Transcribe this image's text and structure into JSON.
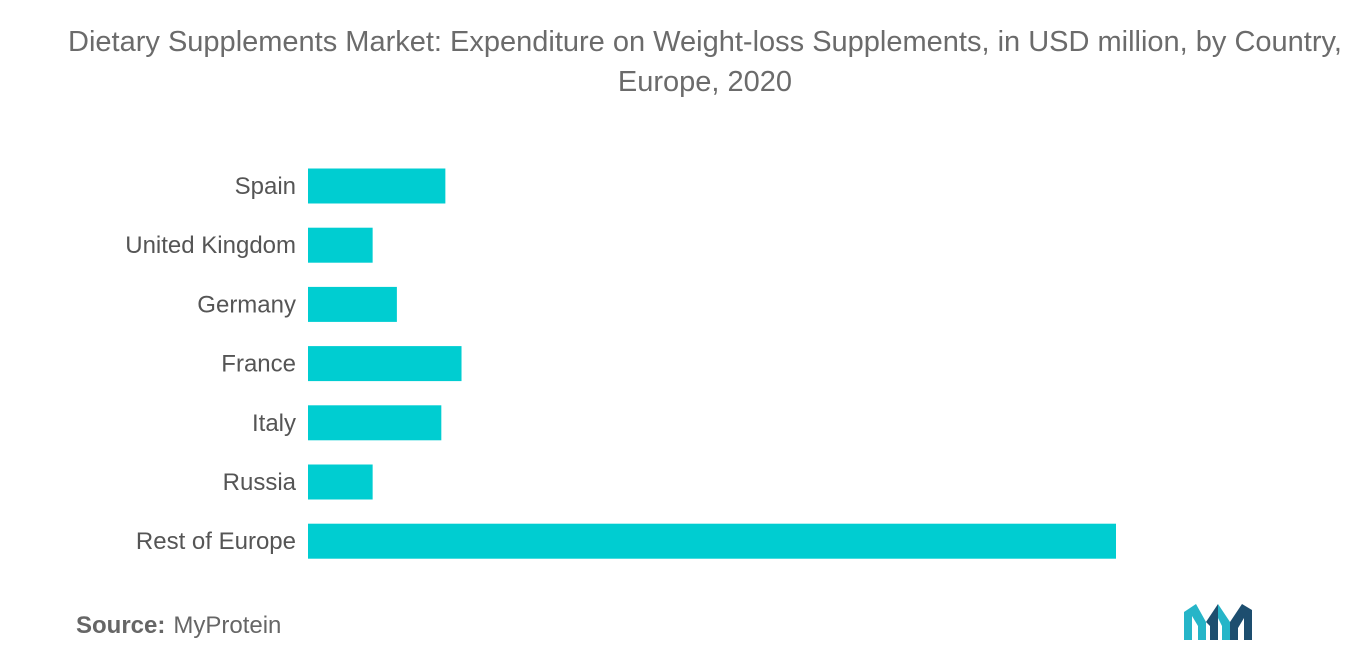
{
  "title": "Dietary Supplements Market: Expenditure on Weight-loss Supplements, in USD million, by Country, Europe, 2020",
  "source_label": "Source:",
  "source_value": "MyProtein",
  "logo_icon": "mordor-intelligence-logo-icon",
  "colors": {
    "bar": "#00cdd1",
    "logo_dark": "#1d4e6f",
    "logo_light": "#26b5c8"
  },
  "chart_data": {
    "type": "bar",
    "orientation": "horizontal",
    "title": "Dietary Supplements Market: Expenditure on Weight-loss Supplements, in USD million, by Country, Europe, 2020",
    "categories": [
      "Spain",
      "United Kingdom",
      "Germany",
      "France",
      "Italy",
      "Russia",
      "Rest of Europe"
    ],
    "values": [
      17,
      8,
      11,
      19,
      16.5,
      8,
      100
    ],
    "xlim": [
      0,
      100
    ],
    "grid": false,
    "legend": "none",
    "xlabel": "",
    "ylabel": ""
  }
}
